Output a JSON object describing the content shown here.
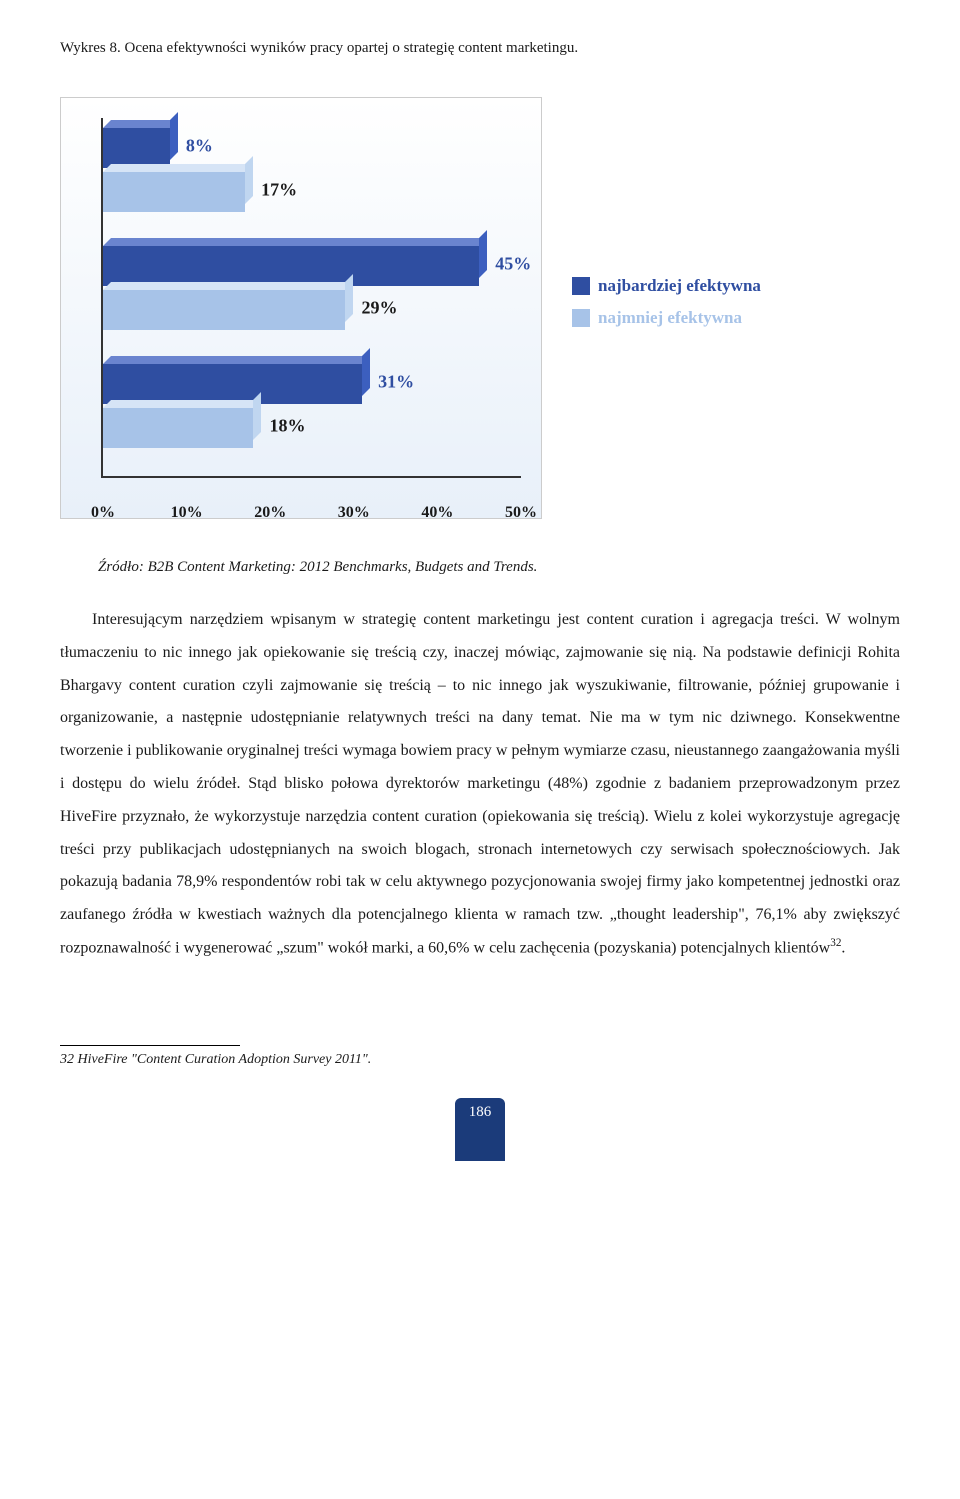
{
  "caption": "Wykres 8. Ocena efektywności wyników pracy opartej o strategię content marketingu.",
  "chart": {
    "type": "bar-horizontal-3d",
    "xlim": [
      0,
      50
    ],
    "xtick_step": 10,
    "xtick_suffix": "%",
    "x_ticks": [
      "0%",
      "10%",
      "20%",
      "30%",
      "40%",
      "50%"
    ],
    "background_gradient": [
      "#ffffff",
      "#e8f0f9"
    ],
    "axis_color": "#333333",
    "label_fontsize": 18,
    "label_fontweight": "bold",
    "series": [
      {
        "name": "najbardziej efektywna",
        "color": "#2f4ea1",
        "side_color": "#3c5fbf",
        "top_color": "#6a84cf"
      },
      {
        "name": "najmniej efektywna",
        "color": "#a7c3e8",
        "side_color": "#c0d6f0",
        "top_color": "#d6e4f6"
      }
    ],
    "groups": [
      {
        "values": [
          {
            "label": "8%",
            "pct": 8,
            "series": 0,
            "label_color": "#2f4ea1"
          },
          {
            "label": "17%",
            "pct": 17,
            "series": 1,
            "label_color": "#1a1a1a"
          }
        ]
      },
      {
        "values": [
          {
            "label": "45%",
            "pct": 45,
            "series": 0,
            "label_color": "#2f4ea1"
          },
          {
            "label": "29%",
            "pct": 29,
            "series": 1,
            "label_color": "#1a1a1a"
          }
        ]
      },
      {
        "values": [
          {
            "label": "31%",
            "pct": 31,
            "series": 0,
            "label_color": "#2f4ea1"
          },
          {
            "label": "18%",
            "pct": 18,
            "series": 1,
            "label_color": "#1a1a1a"
          }
        ]
      }
    ],
    "legend": {
      "items": [
        {
          "swatch": "#2f4ea1",
          "label": "najbardziej efektywna",
          "label_color": "#2f4ea1"
        },
        {
          "swatch": "#a7c3e8",
          "label": "najmniej efektywna",
          "label_color": "#a7c3e8"
        }
      ]
    }
  },
  "source": "Źródło: B2B Content Marketing: 2012 Benchmarks, Budgets and Trends.",
  "body": "Interesującym narzędziem wpisanym w strategię content marketingu jest content curation i agregacja treści. W wolnym tłumaczeniu to nic innego jak opiekowanie się treścią czy, inaczej mówiąc, zajmowanie się nią. Na podstawie definicji Rohita Bhargavy content curation czyli zajmowanie się treścią – to nic innego jak wyszukiwanie, filtrowanie, później grupowanie i organizowanie, a następnie udostępnianie relatywnych treści na dany temat. Nie ma w tym nic dziwnego. Konsekwentne tworzenie i publikowanie oryginalnej treści wymaga bowiem pracy w pełnym wymiarze czasu, nieustannego zaangażowania myśli i dostępu do wielu źródeł. Stąd blisko połowa dyrektorów marketingu (48%) zgodnie z badaniem przeprowadzonym przez HiveFire przyznało, że wykorzystuje narzędzia content curation (opiekowania się treścią). Wielu z kolei wykorzystuje agregację treści przy publikacjach udostępnianych na swoich blogach, stronach internetowych czy serwisach społecznościowych. Jak pokazują badania 78,9% respondentów robi tak w celu aktywnego pozycjonowania swojej firmy jako kompetentnej jednostki oraz zaufanego źródła w kwestiach ważnych dla potencjalnego klienta w ramach tzw. „thought leadership\", 76,1% aby zwiększyć rozpoznawalność i wygenerować „szum\" wokół marki, a 60,6% w celu zachęcenia (pozyskania) potencjalnych klientów",
  "footnote_ref": "32",
  "footnote": "32 HiveFire \"Content Curation Adoption Survey 2011\".",
  "page_number": "186"
}
